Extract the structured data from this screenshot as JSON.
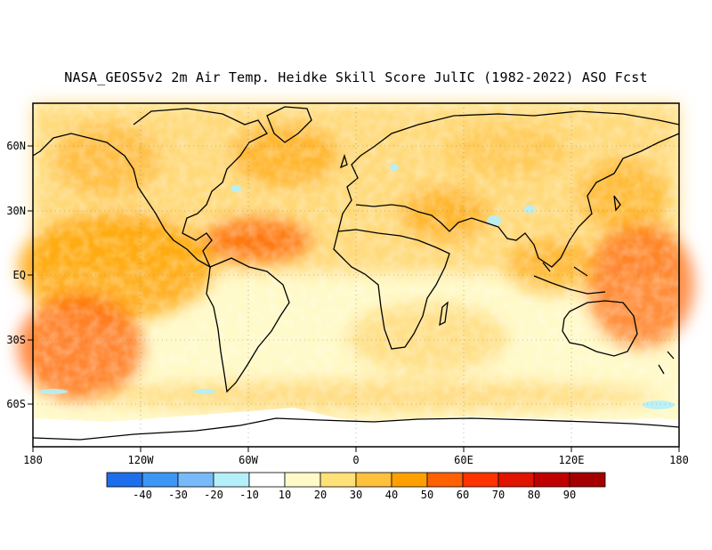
{
  "title": "NASA_GEOS5v2 2m Air Temp. Heidke Skill Score JulIC (1982-2022) ASO Fcst",
  "lat_labels": [
    "60N",
    "30N",
    "EQ",
    "30S",
    "60S"
  ],
  "lon_labels": [
    "180",
    "120W",
    "60W",
    "0",
    "60E",
    "120E",
    "180"
  ],
  "colorbar": {
    "tick_labels": [
      "-40",
      "-30",
      "-20",
      "-10",
      "10",
      "20",
      "30",
      "40",
      "50",
      "60",
      "70",
      "80",
      "90"
    ],
    "colors": [
      "#1e6eeb",
      "#3c96f5",
      "#78b9fa",
      "#b4f0fa",
      "#ffffff",
      "#fffac8",
      "#ffe178",
      "#ffc03c",
      "#ffa000",
      "#ff6000",
      "#ff3200",
      "#e11400",
      "#c00000",
      "#a50000"
    ]
  }
}
